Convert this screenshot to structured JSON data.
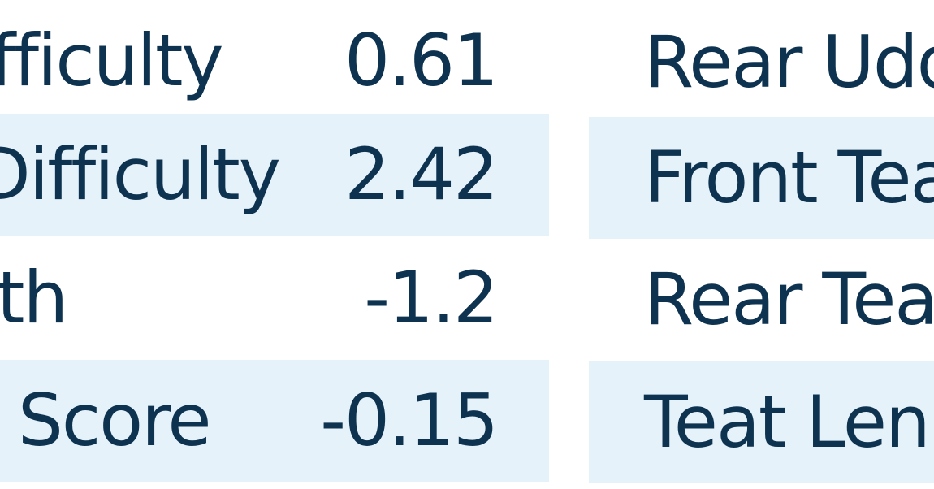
{
  "colors": {
    "text": "#0e3350",
    "band": "#e5f2f9"
  },
  "left_table": {
    "rows": [
      {
        "label": "fficulty",
        "value": "0.61"
      },
      {
        "label": "Difficulty",
        "value": "2.42"
      },
      {
        "label": "th",
        "value": "-1.2"
      },
      {
        "label": "Score",
        "value": "-0.15"
      }
    ]
  },
  "right_table": {
    "rows": [
      {
        "label": "Rear Udd"
      },
      {
        "label": "Front Tea"
      },
      {
        "label": "Rear Tea"
      },
      {
        "label": "Teat Len"
      }
    ]
  }
}
